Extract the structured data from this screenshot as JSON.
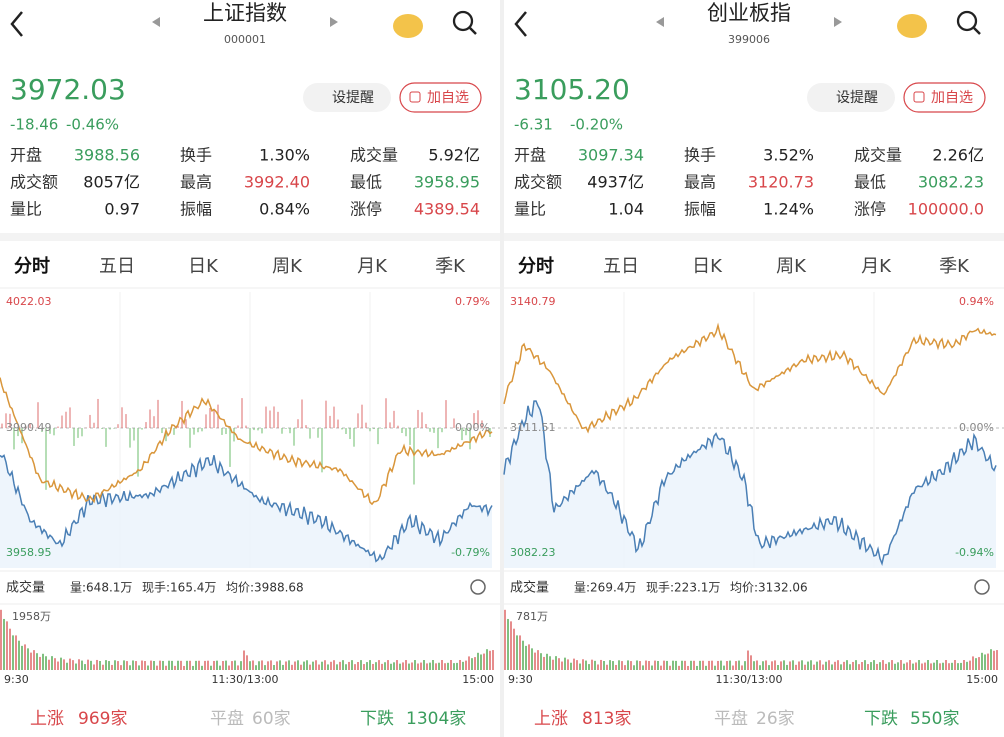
{
  "panels": [
    {
      "header": {
        "title": "上证指数",
        "code": "000001"
      },
      "quote": {
        "price": "3972.03",
        "change": "-18.46",
        "change_pct": "-0.46%"
      },
      "buttons": [
        "设提醒",
        "加自选"
      ],
      "stats": [
        [
          [
            "开盘",
            "3988.56"
          ],
          [
            "换手",
            "1.30%"
          ],
          [
            "成交量",
            "5.92亿"
          ]
        ],
        [
          [
            "成交额",
            "8057亿"
          ],
          [
            "最高",
            "3992.40"
          ],
          [
            "最低",
            "3958.95"
          ]
        ],
        [
          [
            "量比",
            "0.97"
          ],
          [
            "振幅",
            "0.84%"
          ],
          [
            "涨停",
            "4389.54"
          ]
        ]
      ],
      "tabs": [
        "分时",
        "五日",
        "日K",
        "周K",
        "月K",
        "季K"
      ],
      "chart": {
        "high": "4022.03",
        "high_pct": "0.79%",
        "mid": "3990.49",
        "mid_pct": "0.00%",
        "low": "3958.95",
        "low_pct": "-0.79%"
      },
      "volume_bar": {
        "label": "成交量",
        "volume": "量:648.1万",
        "current": "现手:165.4万",
        "avg": "均价:3988.68"
      },
      "volume_chart": {
        "max": "1958万",
        "times": [
          "9:30",
          "11:30/13:00",
          "15:00"
        ]
      },
      "breadth": [
        [
          "上涨",
          "969家"
        ],
        [
          "平盘",
          "60家"
        ],
        [
          "下跌",
          "1304家"
        ]
      ]
    },
    {
      "header": {
        "title": "创业板指",
        "code": "399006"
      },
      "quote": {
        "price": "3105.20",
        "change": "-6.31",
        "change_pct": "-0.20%"
      },
      "buttons": [
        "设提醒",
        "加自选"
      ],
      "stats": [
        [
          [
            "开盘",
            "3097.34"
          ],
          [
            "换手",
            "3.52%"
          ],
          [
            "成交量",
            "2.26亿"
          ]
        ],
        [
          [
            "成交额",
            "4937亿"
          ],
          [
            "最高",
            "3120.73"
          ],
          [
            "最低",
            "3082.23"
          ]
        ],
        [
          [
            "量比",
            "1.04"
          ],
          [
            "振幅",
            "1.24%"
          ],
          [
            "涨停",
            "100000.0"
          ]
        ]
      ],
      "tabs": [
        "分时",
        "五日",
        "日K",
        "周K",
        "月K",
        "季K"
      ],
      "chart": {
        "high": "3140.79",
        "high_pct": "0.94%",
        "mid": "3111.51",
        "mid_pct": "0.00%",
        "low": "3082.23",
        "low_pct": "-0.94%"
      },
      "volume_bar": {
        "label": "成交量",
        "volume": "量:269.4万",
        "current": "现手:223.1万",
        "avg": "均价:3132.06"
      },
      "volume_chart": {
        "max": "781万",
        "times": [
          "9:30",
          "11:30/13:00",
          "15:00"
        ]
      },
      "breadth": [
        [
          "上涨",
          "813家"
        ],
        [
          "平盘",
          "26家"
        ],
        [
          "下跌",
          "550家"
        ]
      ]
    }
  ]
}
